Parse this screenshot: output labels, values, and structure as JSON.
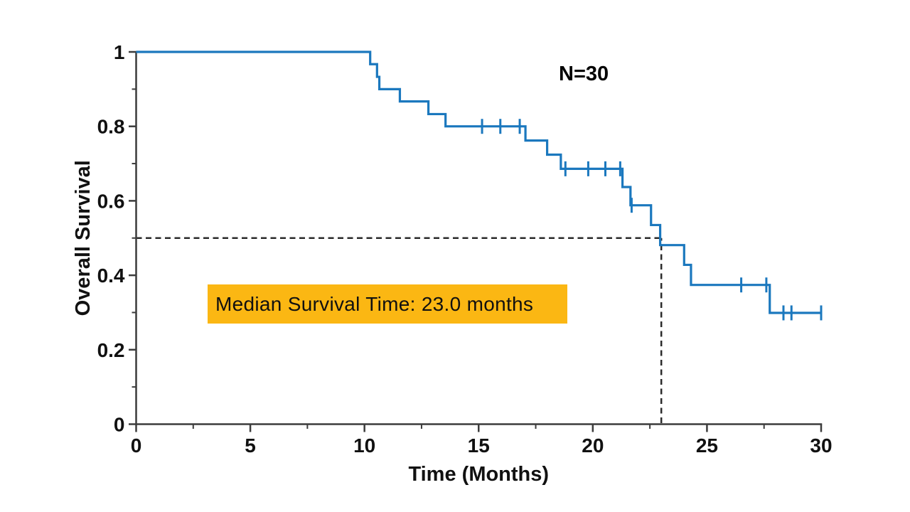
{
  "chart_data": {
    "type": "line",
    "subtype": "kaplan_meier_step_curve",
    "title": "",
    "xlabel": "Time (Months)",
    "ylabel": "Overall Survival",
    "xlim": [
      0,
      30
    ],
    "ylim": [
      0,
      1
    ],
    "x_ticks": [
      0,
      5,
      10,
      15,
      20,
      25,
      30
    ],
    "x_tick_labels": [
      "0",
      "5",
      "10",
      "15",
      "20",
      "25",
      "30"
    ],
    "x_minor_ticks": [
      2.5,
      7.5,
      12.5,
      17.5,
      22.5,
      27.5
    ],
    "y_ticks": [
      0,
      0.2,
      0.4,
      0.6,
      0.8,
      1
    ],
    "y_tick_labels": [
      "0",
      "0.2",
      "0.4",
      "0.6",
      "0.8",
      "1"
    ],
    "y_minor_ticks": [
      0.1,
      0.3,
      0.5,
      0.7,
      0.9
    ],
    "grid": false,
    "legend": "none",
    "axis_color": "#3c3c3c",
    "text_color": "#111111",
    "sample_size": 30,
    "median_survival_months": 23.0,
    "reference_lines": [
      {
        "orientation": "horizontal",
        "survival": 0.5,
        "from_x": 0,
        "to_x": 23,
        "style": "dashed",
        "color": "#2b2b2b"
      },
      {
        "orientation": "vertical",
        "time": 23,
        "from_y": 0,
        "to_y": 0.5,
        "style": "dashed",
        "color": "#2b2b2b"
      }
    ],
    "series": [
      {
        "name": "Overall Survival",
        "color": "#1b78be",
        "steps": [
          [
            0,
            1.0
          ],
          [
            10.25,
            0.967
          ],
          [
            10.55,
            0.933
          ],
          [
            10.65,
            0.9
          ],
          [
            11.55,
            0.867
          ],
          [
            12.8,
            0.833
          ],
          [
            13.55,
            0.8
          ],
          [
            17.05,
            0.762
          ],
          [
            18.0,
            0.724
          ],
          [
            18.6,
            0.686
          ],
          [
            21.3,
            0.637
          ],
          [
            21.65,
            0.588
          ],
          [
            22.55,
            0.535
          ],
          [
            22.95,
            0.481
          ],
          [
            24.0,
            0.428
          ],
          [
            24.3,
            0.374
          ],
          [
            27.75,
            0.299
          ]
        ],
        "end_x": 30.0,
        "censor_marks": [
          [
            15.15,
            0.8
          ],
          [
            15.95,
            0.8
          ],
          [
            16.8,
            0.8
          ],
          [
            18.8,
            0.686
          ],
          [
            19.8,
            0.686
          ],
          [
            20.55,
            0.686
          ],
          [
            21.2,
            0.686
          ],
          [
            21.7,
            0.588
          ],
          [
            26.5,
            0.374
          ],
          [
            27.6,
            0.374
          ],
          [
            28.35,
            0.299
          ],
          [
            28.7,
            0.299
          ],
          [
            30.0,
            0.299
          ]
        ]
      }
    ],
    "annotations": {
      "n_label": "N=30",
      "median_label": "Median Survival Time: 23.0 months",
      "median_bg_color": "#FBB713"
    }
  }
}
